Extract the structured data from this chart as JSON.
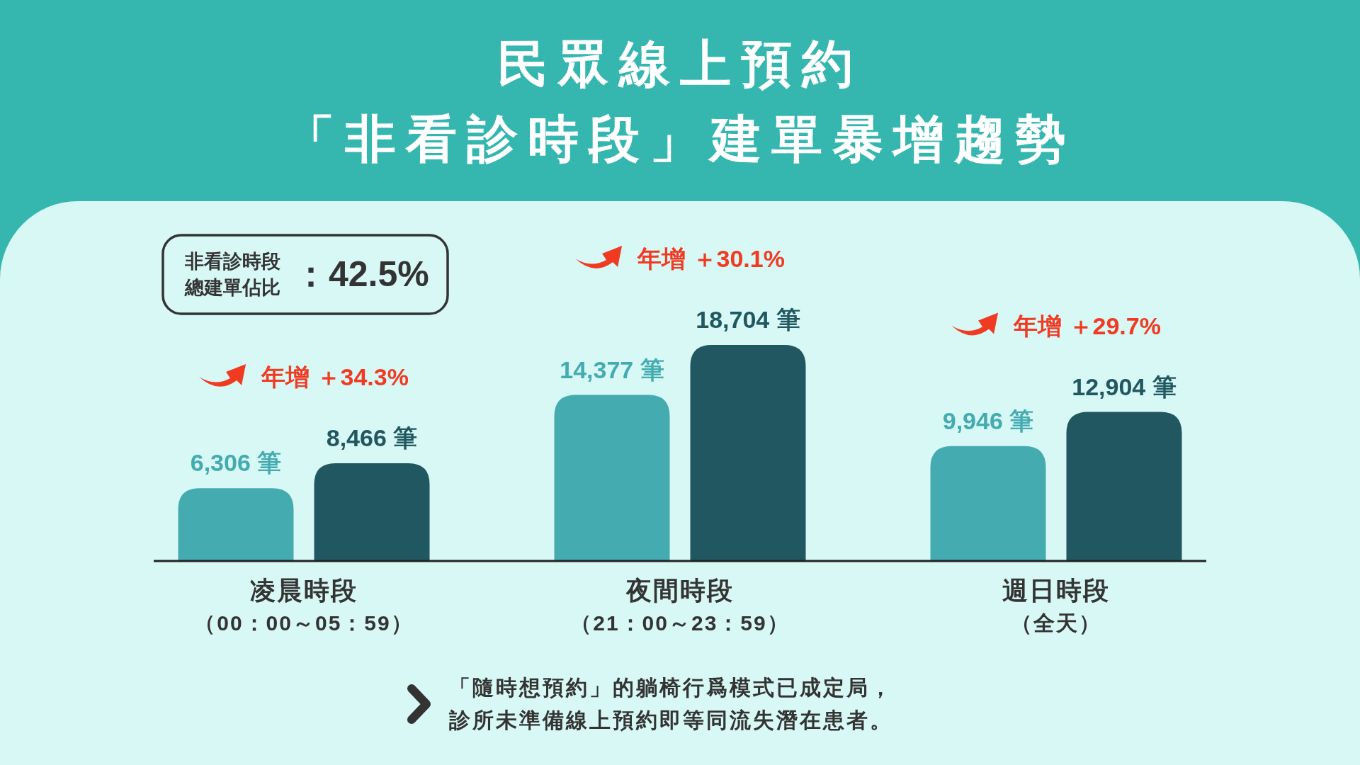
{
  "chart_data": {
    "type": "bar",
    "title": "民眾線上預約「非看診時段」建單暴增趨勢",
    "categories": [
      "凌晨時段（00：00～05：59）",
      "夜間時段（21：00～23：59）",
      "週日時段（全天）"
    ],
    "series": [
      {
        "color": "#44abb1",
        "values": [
          6306,
          14377,
          9946
        ],
        "value_labels": [
          "6,306 筆",
          "14,377 筆",
          "9,946 筆"
        ]
      },
      {
        "color": "#215760",
        "values": [
          8466,
          18704,
          12904
        ],
        "value_labels": [
          "8,466 筆",
          "18,704 筆",
          "12,904 筆"
        ]
      }
    ],
    "annotations": [
      "非看診時段總建單佔比：42.5%",
      "年增 ＋34.3%",
      "年增 ＋30.1%",
      "年增 ＋29.7%",
      "「隨時想預約」的躺椅行爲模式已成定局，診所未準備線上預約即等同流失潛在患者。"
    ]
  }
}
